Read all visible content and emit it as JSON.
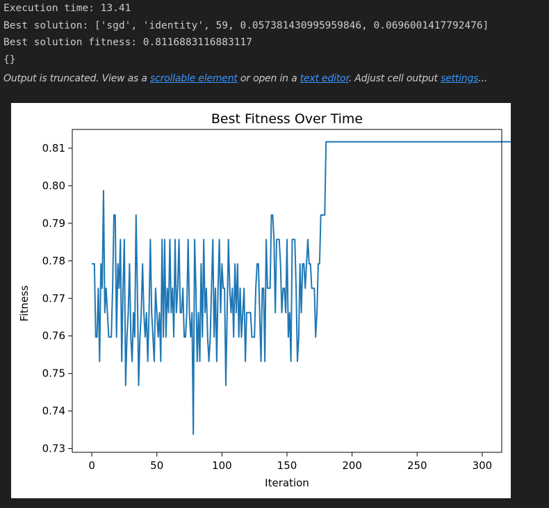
{
  "console": {
    "lines": [
      "Execution time: 13.41",
      "Best solution: ['sgd', 'identity', 59, 0.057381430995959846, 0.0696001417792476]",
      "Best solution fitness: 0.8116883116883117",
      "{}"
    ]
  },
  "truncation": {
    "prefix": "Output is truncated. View as a ",
    "link1": "scrollable element",
    "middle": " or open in a ",
    "link2": "text editor",
    "middle2": ". Adjust cell output ",
    "link3": "settings",
    "suffix": "..."
  },
  "colors": {
    "background": "#1f1f1f",
    "text": "#cccccc",
    "link": "#3794ff",
    "series": "#1f77b4"
  },
  "chart_data": {
    "type": "line",
    "title": "Best Fitness Over Time",
    "xlabel": "Iteration",
    "ylabel": "Fitness",
    "xlim": [
      -15,
      315
    ],
    "ylim": [
      0.729,
      0.815
    ],
    "xticks": [
      0,
      50,
      100,
      150,
      200,
      250,
      300
    ],
    "yticks": [
      0.73,
      0.74,
      0.75,
      0.76,
      0.77,
      0.78,
      0.79,
      0.8,
      0.81
    ],
    "ytick_labels": [
      "0.73",
      "0.74",
      "0.75",
      "0.76",
      "0.77",
      "0.78",
      "0.79",
      "0.80",
      "0.81"
    ],
    "grid": false,
    "series": [
      {
        "values": [
          0.7792,
          0.7792,
          0.7792,
          0.7597,
          0.7597,
          0.7727,
          0.7532,
          0.7792,
          0.7727,
          0.7987,
          0.7662,
          0.7727,
          0.7662,
          0.7597,
          0.7597,
          0.7597,
          0.7727,
          0.7922,
          0.7922,
          0.7597,
          0.7792,
          0.7727,
          0.7857,
          0.7532,
          0.7727,
          0.7857,
          0.7468,
          0.7597,
          0.7662,
          0.7792,
          0.7597,
          0.7532,
          0.7662,
          0.7597,
          0.7922,
          0.7727,
          0.7468,
          0.7597,
          0.7662,
          0.7792,
          0.7662,
          0.7597,
          0.7662,
          0.7532,
          0.7662,
          0.7857,
          0.7662,
          0.7597,
          0.7532,
          0.7727,
          0.7662,
          0.7597,
          0.7662,
          0.7532,
          0.7857,
          0.7597,
          0.7857,
          0.7597,
          0.7727,
          0.7662,
          0.7857,
          0.7662,
          0.7727,
          0.7597,
          0.7857,
          0.7662,
          0.7727,
          0.7857,
          0.7662,
          0.7662,
          0.7727,
          0.7597,
          0.7597,
          0.7662,
          0.7857,
          0.7662,
          0.7597,
          0.7662,
          0.7338,
          0.7857,
          0.7727,
          0.7532,
          0.7662,
          0.7532,
          0.7792,
          0.7597,
          0.7857,
          0.7662,
          0.7727,
          0.7597,
          0.7532,
          0.7597,
          0.7727,
          0.7857,
          0.7597,
          0.7727,
          0.7532,
          0.7727,
          0.7857,
          0.7662,
          0.7792,
          0.7727,
          0.7727,
          0.7468,
          0.7662,
          0.7857,
          0.7727,
          0.7662,
          0.7727,
          0.7597,
          0.7792,
          0.7662,
          0.7792,
          0.7597,
          0.7727,
          0.7597,
          0.7662,
          0.7727,
          0.7532,
          0.7662,
          0.7662,
          0.7662,
          0.7662,
          0.7597,
          0.7597,
          0.7597,
          0.7727,
          0.7792,
          0.7792,
          0.7662,
          0.7532,
          0.7727,
          0.7727,
          0.7532,
          0.7857,
          0.7727,
          0.7727,
          0.7727,
          0.7922,
          0.7922,
          0.7857,
          0.7662,
          0.7857,
          0.7857,
          0.7857,
          0.7792,
          0.7662,
          0.7727,
          0.7727,
          0.7662,
          0.7857,
          0.7597,
          0.7662,
          0.7532,
          0.7857,
          0.7857,
          0.7857,
          0.7727,
          0.7532,
          0.7597,
          0.7792,
          0.7662,
          0.7792,
          0.7792,
          0.7727,
          0.7792,
          0.7857,
          0.7792,
          0.7792,
          0.7727,
          0.7727,
          0.7727,
          0.7597,
          0.7662,
          0.7792,
          0.7792,
          0.7922,
          0.7922,
          0.7922,
          0.7922,
          0.8117,
          0.8117,
          0.8117,
          0.8117,
          0.8117,
          0.8117,
          0.8117,
          0.8117,
          0.8117,
          0.8117,
          0.8117,
          0.8117,
          0.8117,
          0.8117,
          0.8117,
          0.8117,
          0.8117,
          0.8117,
          0.8117,
          0.8117,
          0.8117,
          0.8117,
          0.8117,
          0.8117,
          0.8117,
          0.8117,
          0.8117,
          0.8117,
          0.8117,
          0.8117,
          0.8117,
          0.8117,
          0.8117,
          0.8117,
          0.8117,
          0.8117,
          0.8117,
          0.8117,
          0.8117,
          0.8117,
          0.8117,
          0.8117,
          0.8117,
          0.8117,
          0.8117,
          0.8117,
          0.8117,
          0.8117,
          0.8117,
          0.8117,
          0.8117,
          0.8117,
          0.8117,
          0.8117,
          0.8117,
          0.8117,
          0.8117,
          0.8117,
          0.8117,
          0.8117,
          0.8117,
          0.8117,
          0.8117,
          0.8117,
          0.8117,
          0.8117,
          0.8117,
          0.8117,
          0.8117,
          0.8117,
          0.8117,
          0.8117,
          0.8117,
          0.8117,
          0.8117,
          0.8117,
          0.8117,
          0.8117,
          0.8117,
          0.8117,
          0.8117,
          0.8117,
          0.8117,
          0.8117,
          0.8117,
          0.8117,
          0.8117,
          0.8117,
          0.8117,
          0.8117,
          0.8117,
          0.8117,
          0.8117,
          0.8117,
          0.8117,
          0.8117,
          0.8117,
          0.8117,
          0.8117,
          0.8117,
          0.8117,
          0.8117,
          0.8117,
          0.8117,
          0.8117,
          0.8117,
          0.8117,
          0.8117,
          0.8117,
          0.8117,
          0.8117,
          0.8117,
          0.8117,
          0.8117,
          0.8117,
          0.8117,
          0.8117,
          0.8117,
          0.8117,
          0.8117,
          0.8117,
          0.8117,
          0.8117,
          0.8117,
          0.8117,
          0.8117,
          0.8117,
          0.8117,
          0.8117,
          0.8117,
          0.8117,
          0.8117,
          0.8117,
          0.8117,
          0.8117,
          0.8117,
          0.8117,
          0.8117,
          0.8117,
          0.8117,
          0.8117,
          0.8117,
          0.8117,
          0.8117,
          0.8117,
          0.8117,
          0.8117
        ]
      }
    ]
  }
}
